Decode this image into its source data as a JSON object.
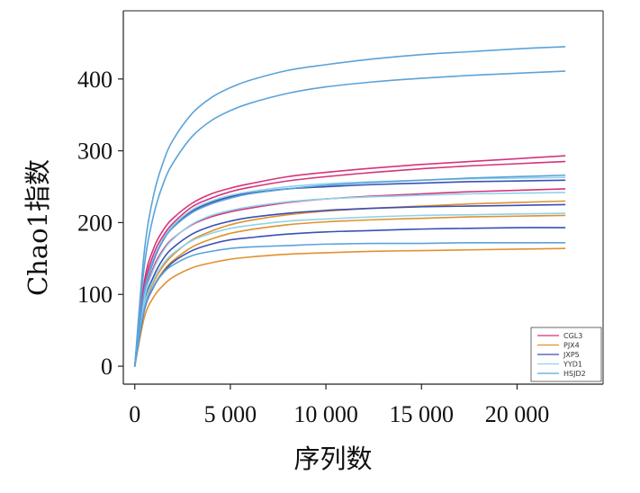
{
  "chart_data": {
    "type": "line",
    "title": "",
    "xlabel": "序列数",
    "ylabel": "Chao1指数",
    "xlim": [
      -600,
      24500
    ],
    "ylim": [
      -25,
      495
    ],
    "x_ticks": [
      0,
      5000,
      10000,
      15000,
      20000
    ],
    "x_tick_labels": [
      "0",
      "5 000",
      "10 000",
      "15 000",
      "20 000"
    ],
    "y_ticks": [
      0,
      100,
      200,
      300,
      400
    ],
    "y_tick_labels": [
      "0",
      "100",
      "200",
      "300",
      "400"
    ],
    "grid": false,
    "legend_position": "bottom-right",
    "x": [
      0,
      500,
      1000,
      1500,
      2000,
      3000,
      4000,
      5000,
      6000,
      8000,
      10000,
      12500,
      15000,
      17500,
      20000,
      22500
    ],
    "series": [
      {
        "name": "CGL3",
        "color": "#d6337a",
        "values": [
          0,
          118,
          165,
          190,
          206,
          227,
          240,
          248,
          254,
          264,
          270,
          276,
          281,
          285,
          289,
          293
        ]
      },
      {
        "name": "CGL3",
        "color": "#d6337a",
        "values": [
          0,
          110,
          157,
          182,
          199,
          222,
          234,
          243,
          249,
          258,
          264,
          270,
          275,
          279,
          282,
          285
        ]
      },
      {
        "name": "CGL3",
        "color": "#d6337a",
        "values": [
          0,
          95,
          139,
          163,
          178,
          197,
          208,
          215,
          220,
          228,
          233,
          237,
          240,
          243,
          245,
          247
        ]
      },
      {
        "name": "PJX4",
        "color": "#e0912e",
        "values": [
          0,
          82,
          118,
          140,
          155,
          176,
          188,
          197,
          203,
          211,
          216,
          220,
          223,
          226,
          228,
          230
        ]
      },
      {
        "name": "PJX4",
        "color": "#e0912e",
        "values": [
          0,
          78,
          112,
          133,
          147,
          166,
          177,
          185,
          190,
          197,
          201,
          204,
          206,
          208,
          209,
          210
        ]
      },
      {
        "name": "PJX4",
        "color": "#e0912e",
        "values": [
          0,
          68,
          97,
          113,
          124,
          137,
          144,
          149,
          152,
          156,
          158,
          160,
          161,
          162,
          163,
          164
        ]
      },
      {
        "name": "JXP5",
        "color": "#3a4fb5",
        "values": [
          0,
          100,
          148,
          176,
          194,
          216,
          228,
          236,
          241,
          247,
          250,
          253,
          255,
          257,
          258,
          259
        ]
      },
      {
        "name": "JXP5",
        "color": "#3a4fb5",
        "values": [
          0,
          88,
          126,
          150,
          165,
          184,
          195,
          202,
          207,
          213,
          217,
          220,
          222,
          223,
          224,
          225
        ]
      },
      {
        "name": "JXP5",
        "color": "#3a4fb5",
        "values": [
          0,
          78,
          111,
          131,
          145,
          161,
          170,
          176,
          179,
          184,
          187,
          189,
          191,
          192,
          193,
          193
        ]
      },
      {
        "name": "YYD1",
        "color": "#8fd3e8",
        "values": [
          0,
          102,
          150,
          178,
          196,
          218,
          230,
          238,
          243,
          250,
          254,
          257,
          259,
          261,
          262,
          263
        ]
      },
      {
        "name": "YYD1",
        "color": "#8fd3e8",
        "values": [
          0,
          94,
          136,
          161,
          177,
          198,
          210,
          217,
          222,
          229,
          233,
          236,
          238,
          240,
          241,
          242
        ]
      },
      {
        "name": "YYD1",
        "color": "#8fd3e8",
        "values": [
          0,
          85,
          121,
          143,
          157,
          175,
          185,
          192,
          196,
          202,
          205,
          208,
          210,
          211,
          212,
          213
        ]
      },
      {
        "name": "HSJD2",
        "color": "#5aa3d9",
        "values": [
          0,
          160,
          240,
          285,
          315,
          352,
          374,
          388,
          398,
          412,
          420,
          428,
          434,
          438,
          442,
          445
        ]
      },
      {
        "name": "HSJD2",
        "color": "#5aa3d9",
        "values": [
          0,
          140,
          212,
          255,
          283,
          320,
          342,
          356,
          366,
          380,
          389,
          396,
          401,
          405,
          408,
          411
        ]
      },
      {
        "name": "HSJD2",
        "color": "#5aa3d9",
        "values": [
          0,
          105,
          150,
          176,
          193,
          214,
          226,
          234,
          240,
          247,
          252,
          256,
          259,
          262,
          264,
          266
        ]
      },
      {
        "name": "HSJD2",
        "color": "#5aa3d9",
        "values": [
          0,
          80,
          112,
          130,
          141,
          154,
          160,
          164,
          166,
          168,
          170,
          171,
          171,
          172,
          172,
          172
        ]
      }
    ],
    "legend": [
      {
        "name": "CGL3",
        "color": "#d6337a"
      },
      {
        "name": "PJX4",
        "color": "#e0912e"
      },
      {
        "name": "JXP5",
        "color": "#3a4fb5"
      },
      {
        "name": "YYD1",
        "color": "#8fd3e8"
      },
      {
        "name": "HSJD2",
        "color": "#5aa3d9"
      }
    ]
  }
}
